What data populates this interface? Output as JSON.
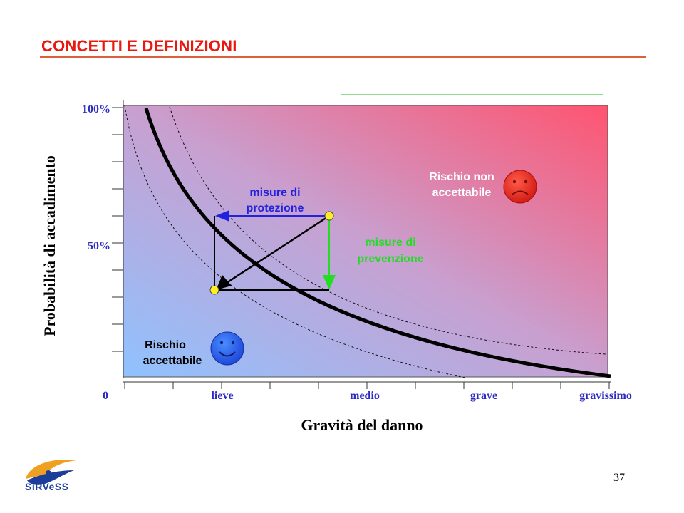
{
  "slide": {
    "title": "CONCETTI E DEFINIZIONI",
    "page_number": "37",
    "logo_text": "SiRVeSS"
  },
  "diagram": {
    "y_axis": {
      "title": "Probabilità di accadimento",
      "ticks": [
        {
          "value": 100,
          "label": "100%"
        },
        {
          "value": 50,
          "label": "50%"
        }
      ]
    },
    "x_axis": {
      "title": "Gravità del danno",
      "origin_label": "0",
      "categories": [
        "lieve",
        "medio",
        "grave",
        "gravissimo"
      ]
    },
    "regions": {
      "unacceptable": {
        "line1": "Rischio non",
        "line2": "accettabile",
        "icon": "sad-face-icon",
        "color": "#e8231a"
      },
      "acceptable": {
        "line1": "Rischio",
        "line2": "accettabile",
        "icon": "happy-face-icon",
        "color": "#2f5fe6"
      }
    },
    "measures": {
      "protection": {
        "line1": "misure di",
        "line2": "protezione",
        "color": "#2222dd"
      },
      "prevention": {
        "line1": "misure di",
        "line2": "prevenzione",
        "color": "#22dd22"
      }
    },
    "colors": {
      "gradient_low": "#8fc2ff",
      "gradient_high": "#ff5470",
      "point": "#ffee22"
    }
  }
}
